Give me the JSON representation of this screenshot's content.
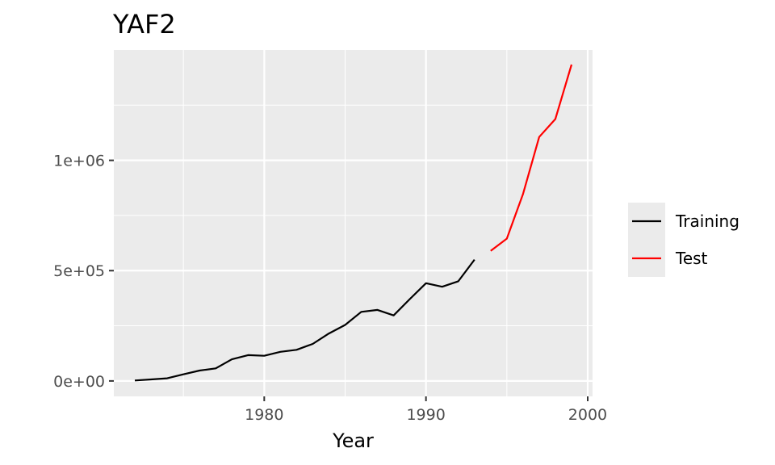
{
  "chart_data": {
    "type": "line",
    "title": "YAF2",
    "xlabel": "Year",
    "ylabel": "",
    "xlim": [
      1970.7,
      2000.3
    ],
    "ylim": [
      -70000,
      1500000
    ],
    "x_ticks": [
      {
        "value": 1980,
        "label": "1980"
      },
      {
        "value": 1990,
        "label": "1990"
      },
      {
        "value": 2000,
        "label": "2000"
      }
    ],
    "x_minor_ticks": [
      1975,
      1985,
      1995
    ],
    "y_ticks": [
      {
        "value": 0,
        "label": "0e+00"
      },
      {
        "value": 500000,
        "label": "5e+05"
      },
      {
        "value": 1000000,
        "label": "1e+06"
      }
    ],
    "y_minor_ticks": [
      250000,
      750000,
      1250000
    ],
    "grid": true,
    "legend_position": "right",
    "series": [
      {
        "name": "Training",
        "color": "#000000",
        "x": [
          1972,
          1973,
          1974,
          1975,
          1976,
          1977,
          1978,
          1979,
          1980,
          1981,
          1982,
          1983,
          1984,
          1985,
          1986,
          1987,
          1988,
          1989,
          1990,
          1991,
          1992,
          1993
        ],
        "y": [
          2000,
          7000,
          12000,
          30000,
          47000,
          57000,
          98000,
          117000,
          114000,
          132000,
          141000,
          168000,
          215000,
          254000,
          313000,
          322000,
          297000,
          371000,
          443000,
          427000,
          452000,
          550000
        ]
      },
      {
        "name": "Test",
        "color": "#ff0000",
        "x": [
          1994,
          1995,
          1996,
          1997,
          1998,
          1999
        ],
        "y": [
          590000,
          645000,
          848000,
          1106000,
          1187000,
          1434000
        ]
      }
    ]
  }
}
